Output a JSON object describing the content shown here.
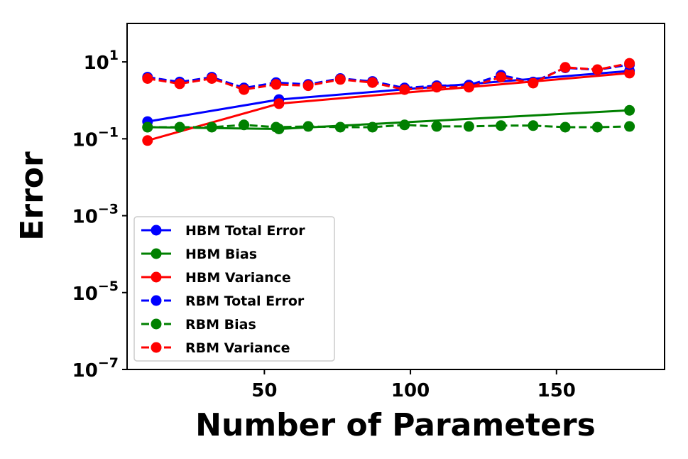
{
  "chart_data": {
    "type": "line",
    "xlabel": "Number of Parameters",
    "ylabel": "Error",
    "xlim": [
      3,
      187
    ],
    "ylim_log10": [
      -7,
      2
    ],
    "yscale": "log",
    "x_ticks": [
      {
        "value": 50,
        "label": "50"
      },
      {
        "value": 100,
        "label": "100"
      },
      {
        "value": 150,
        "label": "150"
      }
    ],
    "y_ticks": [
      {
        "exp": 1,
        "base": "10",
        "sup": "1"
      },
      {
        "exp": -1,
        "base": "10",
        "sup": "−1"
      },
      {
        "exp": -3,
        "base": "10",
        "sup": "−3"
      },
      {
        "exp": -5,
        "base": "10",
        "sup": "−5"
      },
      {
        "exp": -7,
        "base": "10",
        "sup": "−7"
      }
    ],
    "legend_position": "lower-left",
    "series": [
      {
        "name": "HBM Total Error",
        "color": "#0000ff",
        "dash": false,
        "x": [
          10,
          55,
          175
        ],
        "y": [
          0.28,
          1.05,
          5.8
        ]
      },
      {
        "name": "HBM Bias",
        "color": "#008000",
        "dash": false,
        "x": [
          10,
          55,
          175
        ],
        "y": [
          0.2,
          0.18,
          0.55
        ]
      },
      {
        "name": "HBM Variance",
        "color": "#ff0000",
        "dash": false,
        "x": [
          10,
          55,
          175
        ],
        "y": [
          0.09,
          0.82,
          5.1
        ]
      },
      {
        "name": "RBM Total Error",
        "color": "#0000ff",
        "dash": true,
        "x": [
          10,
          21,
          32,
          43,
          54,
          65,
          76,
          87,
          98,
          109,
          120,
          131,
          142,
          153,
          164,
          175
        ],
        "y": [
          4.0,
          3.0,
          4.0,
          2.1,
          2.9,
          2.6,
          3.7,
          3.1,
          2.1,
          2.4,
          2.5,
          4.5,
          3.0,
          7.0,
          6.2,
          8.5
        ]
      },
      {
        "name": "RBM Bias",
        "color": "#008000",
        "dash": true,
        "x": [
          10,
          21,
          32,
          43,
          54,
          65,
          76,
          87,
          98,
          109,
          120,
          131,
          142,
          153,
          164,
          175
        ],
        "y": [
          0.2,
          0.2,
          0.2,
          0.23,
          0.2,
          0.21,
          0.2,
          0.2,
          0.23,
          0.21,
          0.21,
          0.22,
          0.22,
          0.2,
          0.2,
          0.21
        ]
      },
      {
        "name": "RBM Variance",
        "color": "#ff0000",
        "dash": true,
        "x": [
          10,
          21,
          32,
          43,
          54,
          65,
          76,
          87,
          98,
          109,
          120,
          131,
          142,
          153,
          164,
          175
        ],
        "y": [
          3.7,
          2.7,
          3.7,
          1.9,
          2.6,
          2.4,
          3.5,
          2.9,
          1.9,
          2.2,
          2.2,
          4.0,
          2.8,
          7.2,
          6.3,
          9.2
        ]
      }
    ]
  }
}
